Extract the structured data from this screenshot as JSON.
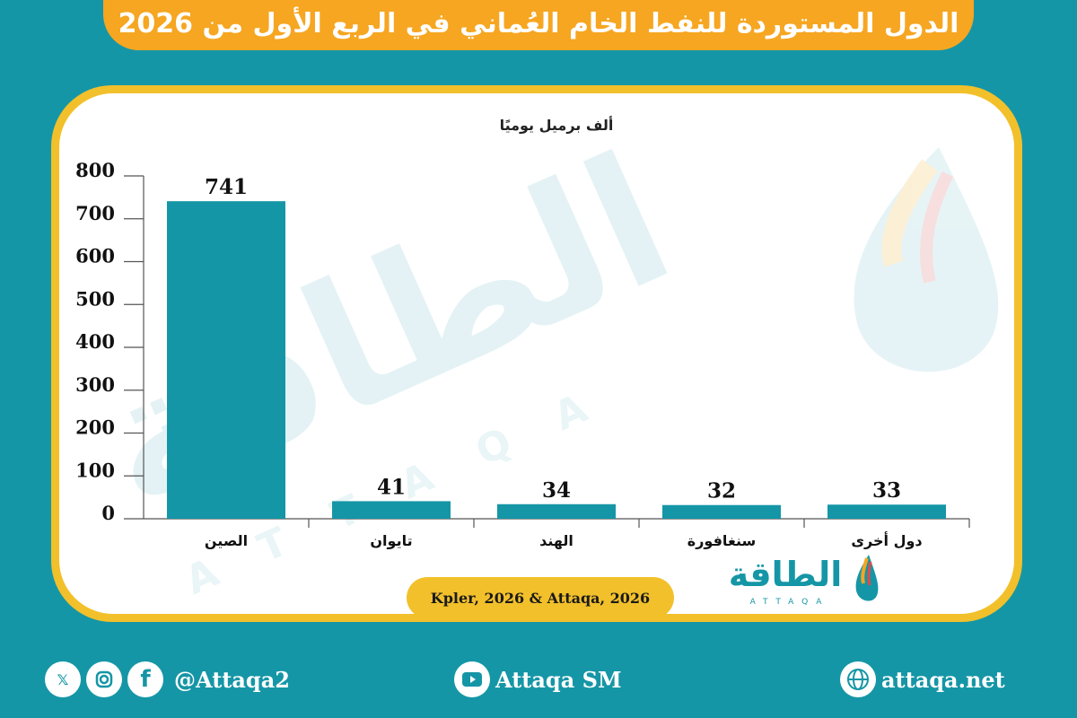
{
  "title": "الدول المستوردة للنفط الخام العُماني في الربع الأول من 2026",
  "colors": {
    "background": "#1596a6",
    "bar": "#1596a6",
    "title_bar": "#f6a621",
    "card_border": "#f2c02b"
  },
  "chart_data": {
    "type": "bar",
    "unit_label": "ألف برميل يوميًا",
    "categories": [
      "الصين",
      "تايوان",
      "الهند",
      "سنغافورة",
      "دول أخرى"
    ],
    "values": [
      741,
      41,
      34,
      32,
      33
    ],
    "ylim": [
      0,
      800
    ],
    "yticks": [
      0,
      100,
      200,
      300,
      400,
      500,
      600,
      700,
      800
    ],
    "grid": false
  },
  "source": "Kpler, 2026 & Attaqa, 2026",
  "logo": {
    "arabic": "الطاقة",
    "latin": "ATTAQA"
  },
  "watermark": {
    "arabic": "الطاقة",
    "latin": "ATTAQA"
  },
  "footer": {
    "social_handle": "@Attaqa2",
    "youtube": "Attaqa SM",
    "website": "attaqa.net",
    "icons": [
      "x-icon",
      "instagram-icon",
      "facebook-icon",
      "youtube-icon",
      "globe-icon"
    ]
  }
}
